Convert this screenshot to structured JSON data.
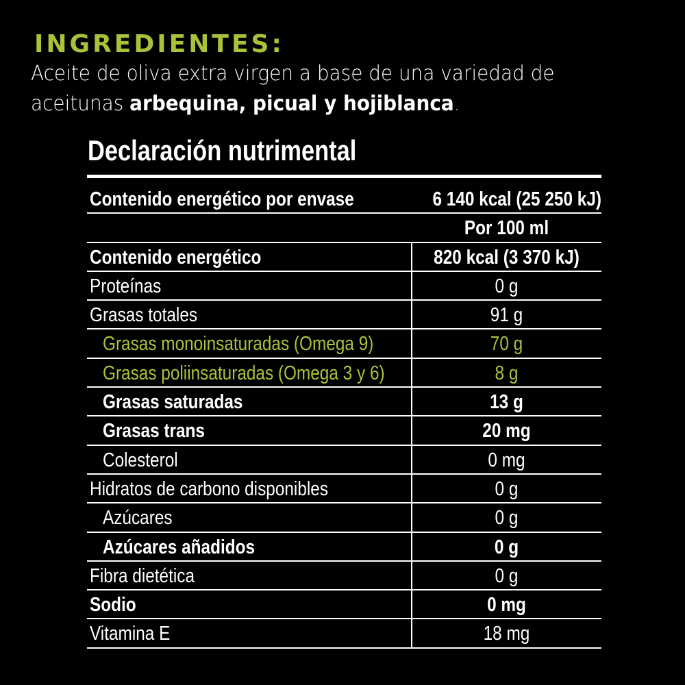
{
  "ingredients": {
    "title": "INGREDIENTES:",
    "text_plain": "Aceite de oliva extra virgen a base de una variedad de aceitunas ",
    "text_bold": "arbequina, picual y hojiblanca",
    "text_end": "."
  },
  "nutrition": {
    "title": "Declaración nutrimental",
    "per_package_label": "Contenido energético por envase",
    "per_package_value": "6 140 kcal (25 250 kJ)",
    "column_header": "Por 100 ml",
    "rows": [
      {
        "label": "Contenido energético",
        "value": "820 kcal (3 370 kJ)",
        "bold": true,
        "indent": false,
        "green": false
      },
      {
        "label": "Proteínas",
        "value": "0 g",
        "bold": false,
        "indent": false,
        "green": false
      },
      {
        "label": "Grasas totales",
        "value": "91 g",
        "bold": false,
        "indent": false,
        "green": false
      },
      {
        "label": "Grasas monoinsaturadas (Omega 9)",
        "value": "70 g",
        "bold": false,
        "indent": true,
        "green": true
      },
      {
        "label": "Grasas poliinsaturadas (Omega 3 y 6)",
        "value": "8 g",
        "bold": false,
        "indent": true,
        "green": true
      },
      {
        "label": "Grasas saturadas",
        "value": "13 g",
        "bold": true,
        "indent": true,
        "green": false
      },
      {
        "label": "Grasas trans",
        "value": "20 mg",
        "bold": true,
        "indent": true,
        "green": false
      },
      {
        "label": "Colesterol",
        "value": "0 mg",
        "bold": false,
        "indent": true,
        "green": false
      },
      {
        "label": "Hidratos de carbono disponibles",
        "value": "0 g",
        "bold": false,
        "indent": false,
        "green": false
      },
      {
        "label": "Azúcares",
        "value": "0 g",
        "bold": false,
        "indent": true,
        "green": false
      },
      {
        "label": "Azúcares añadidos",
        "value": "0 g",
        "bold": true,
        "indent": true,
        "green": false
      },
      {
        "label": "Fibra dietética",
        "value": "0 g",
        "bold": false,
        "indent": false,
        "green": false
      },
      {
        "label": "Sodio",
        "value": "0 mg",
        "bold": true,
        "indent": false,
        "green": false
      },
      {
        "label": "Vitamina E",
        "value": "18 mg",
        "bold": false,
        "indent": false,
        "green": false
      }
    ]
  },
  "colors": {
    "accent_green": "#a9c23a",
    "background": "#000000",
    "text": "#ffffff"
  }
}
